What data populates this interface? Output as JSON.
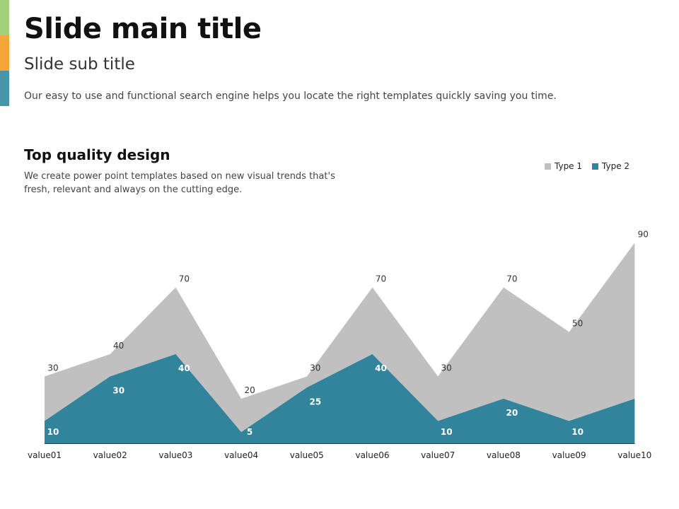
{
  "slide": {
    "title": "Slide main title",
    "subtitle": "Slide sub title",
    "description": "Our easy to use and functional search engine  helps you locate the right templates quickly saving you time.",
    "section_title": "Top quality design",
    "section_description": "We create power point templates based on new visual trends that's fresh, relevant and always on the cutting edge."
  },
  "colors": {
    "accent_green": "#a3d17b",
    "accent_orange": "#f5a63b",
    "accent_teal": "#4695a8",
    "type1": "#c0c0c0",
    "type2": "#31849b"
  },
  "chart_data": {
    "type": "area",
    "categories": [
      "value01",
      "value02",
      "value03",
      "value04",
      "value05",
      "value06",
      "value07",
      "value08",
      "value09",
      "value10"
    ],
    "series": [
      {
        "name": "Type 1",
        "values": [
          30,
          40,
          70,
          20,
          30,
          70,
          30,
          70,
          50,
          90
        ]
      },
      {
        "name": "Type 2",
        "values": [
          10,
          30,
          40,
          5,
          25,
          40,
          10,
          20,
          10,
          20
        ]
      }
    ],
    "title": "",
    "xlabel": "",
    "ylabel": "",
    "ylim": [
      0,
      100
    ],
    "legend": "top-right",
    "grid": false
  }
}
